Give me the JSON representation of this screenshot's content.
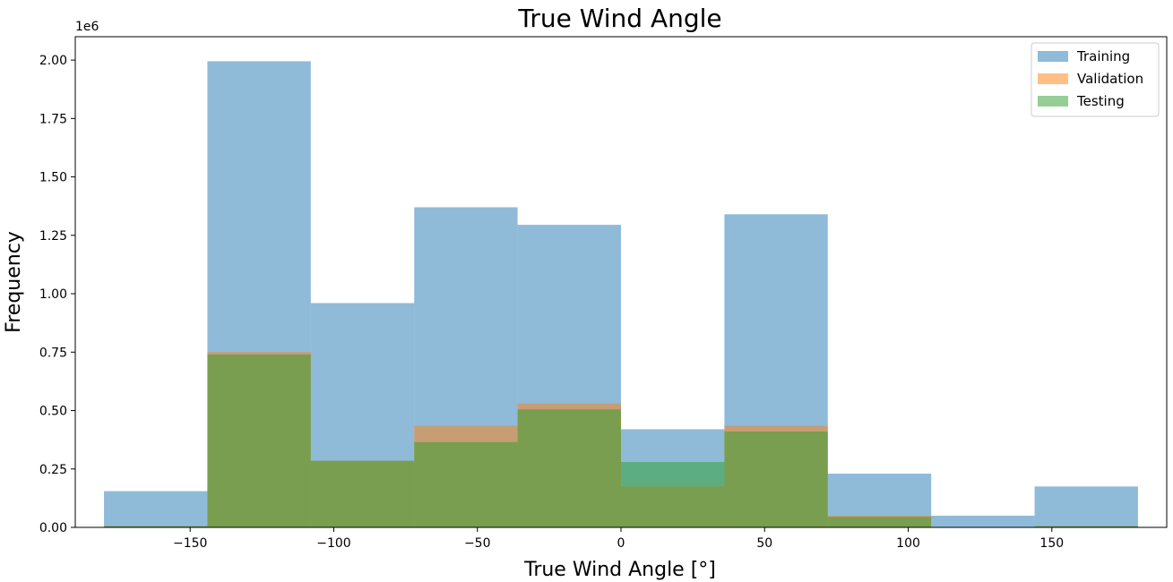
{
  "chart_data": {
    "type": "histogram",
    "title": "True Wind Angle",
    "xlabel": "True Wind Angle [°]",
    "ylabel": "Frequency",
    "y_scale_label": "1e6",
    "xlim": [
      -190,
      190
    ],
    "ylim": [
      0,
      2.1
    ],
    "bins": [
      -180,
      -144,
      -108,
      -72,
      -36,
      0,
      36,
      72,
      108,
      144,
      180
    ],
    "x_ticks": [
      {
        "value": -150,
        "label": "−150"
      },
      {
        "value": -100,
        "label": "−100"
      },
      {
        "value": -50,
        "label": "−50"
      },
      {
        "value": 0,
        "label": "0"
      },
      {
        "value": 50,
        "label": "50"
      },
      {
        "value": 100,
        "label": "100"
      },
      {
        "value": 150,
        "label": "150"
      }
    ],
    "y_ticks": [
      {
        "value": 0,
        "label": "0.00"
      },
      {
        "value": 0.25,
        "label": "0.25"
      },
      {
        "value": 0.5,
        "label": "0.50"
      },
      {
        "value": 0.75,
        "label": "0.75"
      },
      {
        "value": 1.0,
        "label": "1.00"
      },
      {
        "value": 1.25,
        "label": "1.25"
      },
      {
        "value": 1.5,
        "label": "1.50"
      },
      {
        "value": 1.75,
        "label": "1.75"
      },
      {
        "value": 2.0,
        "label": "2.00"
      }
    ],
    "series": [
      {
        "name": "Training",
        "color": "#1f77b4",
        "values": [
          0.155,
          1.995,
          0.96,
          1.37,
          1.295,
          0.42,
          1.34,
          0.23,
          0.05,
          0.175
        ]
      },
      {
        "name": "Validation",
        "color": "#ff7f0e",
        "values": [
          0.005,
          0.75,
          0.285,
          0.435,
          0.53,
          0.175,
          0.435,
          0.05,
          0.0,
          0.005
        ]
      },
      {
        "name": "Testing",
        "color": "#2ca02c",
        "values": [
          0.005,
          0.74,
          0.285,
          0.365,
          0.505,
          0.28,
          0.41,
          0.045,
          0.0,
          0.005
        ]
      }
    ],
    "legend_position": "top-right",
    "grid": false
  }
}
